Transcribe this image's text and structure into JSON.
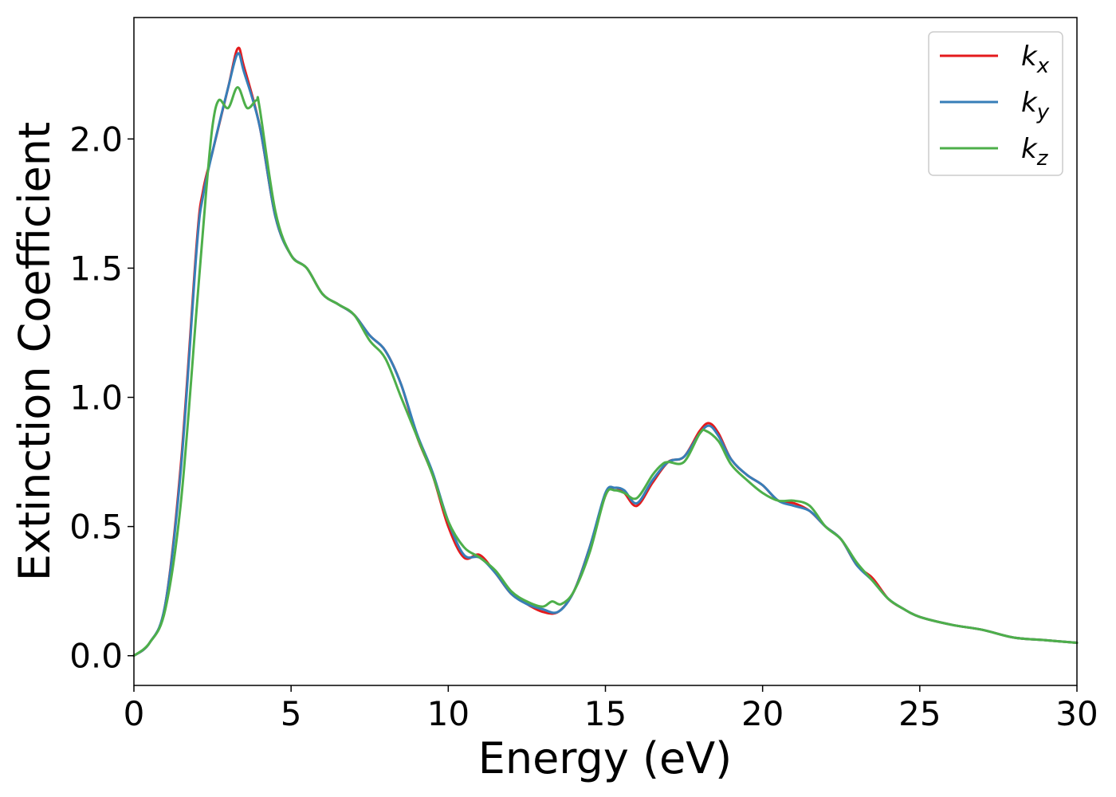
{
  "chart_data": {
    "type": "line",
    "title": "",
    "xlabel": "Energy (eV)",
    "ylabel": "Extinction Coefficient",
    "xlim": [
      0,
      30
    ],
    "ylim": [
      -0.115,
      2.47
    ],
    "xticks": [
      0,
      5,
      10,
      15,
      20,
      25,
      30
    ],
    "xtick_labels": [
      "0",
      "5",
      "10",
      "15",
      "20",
      "25",
      "30"
    ],
    "yticks": [
      0.0,
      0.5,
      1.0,
      1.5,
      2.0
    ],
    "ytick_labels": [
      "0.0",
      "0.5",
      "1.0",
      "1.5",
      "2.0"
    ],
    "grid": false,
    "legend_position": "top-right",
    "series": [
      {
        "name": "k",
        "subscript": "x",
        "color": "#e41a1c",
        "x": [
          0,
          0.5,
          1.0,
          1.5,
          2.0,
          2.2,
          2.5,
          3.0,
          3.3,
          3.5,
          4.0,
          4.5,
          5.0,
          5.5,
          6.0,
          6.5,
          7.0,
          7.5,
          8.0,
          8.5,
          9.0,
          9.5,
          10.0,
          10.5,
          11.0,
          11.5,
          12.0,
          12.5,
          13.0,
          13.5,
          14.0,
          14.5,
          15.0,
          15.3,
          15.6,
          16.0,
          16.5,
          17.0,
          17.5,
          18.0,
          18.3,
          18.6,
          19.0,
          19.5,
          20.0,
          20.5,
          21.0,
          21.5,
          22.0,
          22.5,
          23.0,
          23.5,
          24.0,
          24.5,
          25.0,
          26.0,
          27.0,
          28.0,
          29.0,
          30.0
        ],
        "y": [
          0.0,
          0.05,
          0.2,
          0.75,
          1.6,
          1.8,
          1.95,
          2.2,
          2.35,
          2.28,
          2.05,
          1.7,
          1.55,
          1.5,
          1.4,
          1.36,
          1.32,
          1.24,
          1.18,
          1.05,
          0.85,
          0.7,
          0.5,
          0.38,
          0.39,
          0.32,
          0.24,
          0.2,
          0.17,
          0.17,
          0.25,
          0.42,
          0.62,
          0.65,
          0.63,
          0.58,
          0.67,
          0.75,
          0.77,
          0.87,
          0.9,
          0.86,
          0.76,
          0.7,
          0.66,
          0.6,
          0.59,
          0.56,
          0.5,
          0.45,
          0.35,
          0.3,
          0.22,
          0.18,
          0.15,
          0.12,
          0.1,
          0.07,
          0.06,
          0.05
        ]
      },
      {
        "name": "k",
        "subscript": "y",
        "color": "#377eb8",
        "x": [
          0,
          0.5,
          1.0,
          1.5,
          2.0,
          2.2,
          2.5,
          3.0,
          3.3,
          3.5,
          4.0,
          4.5,
          5.0,
          5.5,
          6.0,
          6.5,
          7.0,
          7.5,
          8.0,
          8.5,
          9.0,
          9.5,
          10.0,
          10.5,
          11.0,
          11.5,
          12.0,
          12.5,
          13.0,
          13.5,
          14.0,
          14.5,
          15.0,
          15.3,
          15.6,
          16.0,
          16.5,
          17.0,
          17.5,
          18.0,
          18.3,
          18.6,
          19.0,
          19.5,
          20.0,
          20.5,
          21.0,
          21.5,
          22.0,
          22.5,
          23.0,
          23.5,
          24.0,
          24.5,
          25.0,
          26.0,
          27.0,
          28.0,
          29.0,
          30.0
        ],
        "y": [
          0.0,
          0.05,
          0.2,
          0.73,
          1.58,
          1.78,
          1.95,
          2.2,
          2.33,
          2.26,
          2.05,
          1.7,
          1.55,
          1.5,
          1.4,
          1.36,
          1.32,
          1.24,
          1.18,
          1.05,
          0.86,
          0.71,
          0.52,
          0.39,
          0.38,
          0.32,
          0.24,
          0.2,
          0.18,
          0.17,
          0.25,
          0.42,
          0.63,
          0.65,
          0.64,
          0.59,
          0.68,
          0.75,
          0.77,
          0.86,
          0.89,
          0.85,
          0.76,
          0.7,
          0.66,
          0.6,
          0.58,
          0.56,
          0.5,
          0.45,
          0.35,
          0.29,
          0.22,
          0.18,
          0.15,
          0.12,
          0.1,
          0.07,
          0.06,
          0.05
        ]
      },
      {
        "name": "k",
        "subscript": "z",
        "color": "#4daf4a",
        "x": [
          0,
          0.5,
          1.0,
          1.5,
          2.0,
          2.3,
          2.5,
          2.7,
          3.0,
          3.3,
          3.6,
          3.9,
          4.0,
          4.5,
          5.0,
          5.5,
          6.0,
          6.5,
          7.0,
          7.5,
          8.0,
          8.5,
          9.0,
          9.5,
          10.0,
          10.5,
          11.0,
          11.5,
          12.0,
          12.5,
          13.0,
          13.3,
          13.6,
          14.0,
          14.5,
          15.0,
          15.3,
          15.6,
          16.0,
          16.5,
          16.8,
          17.0,
          17.5,
          18.0,
          18.2,
          18.6,
          19.0,
          19.5,
          20.0,
          20.5,
          21.0,
          21.5,
          22.0,
          22.5,
          23.0,
          23.5,
          24.0,
          24.5,
          25.0,
          26.0,
          27.0,
          28.0,
          29.0,
          30.0
        ],
        "y": [
          0.0,
          0.05,
          0.18,
          0.6,
          1.35,
          1.8,
          2.05,
          2.15,
          2.12,
          2.2,
          2.12,
          2.15,
          2.12,
          1.72,
          1.55,
          1.5,
          1.4,
          1.36,
          1.32,
          1.22,
          1.15,
          1.0,
          0.85,
          0.7,
          0.52,
          0.42,
          0.38,
          0.33,
          0.25,
          0.21,
          0.19,
          0.21,
          0.2,
          0.25,
          0.4,
          0.62,
          0.64,
          0.63,
          0.61,
          0.7,
          0.74,
          0.75,
          0.75,
          0.86,
          0.87,
          0.83,
          0.74,
          0.68,
          0.63,
          0.6,
          0.6,
          0.58,
          0.5,
          0.45,
          0.36,
          0.29,
          0.22,
          0.18,
          0.15,
          0.12,
          0.1,
          0.07,
          0.06,
          0.05
        ]
      }
    ]
  }
}
